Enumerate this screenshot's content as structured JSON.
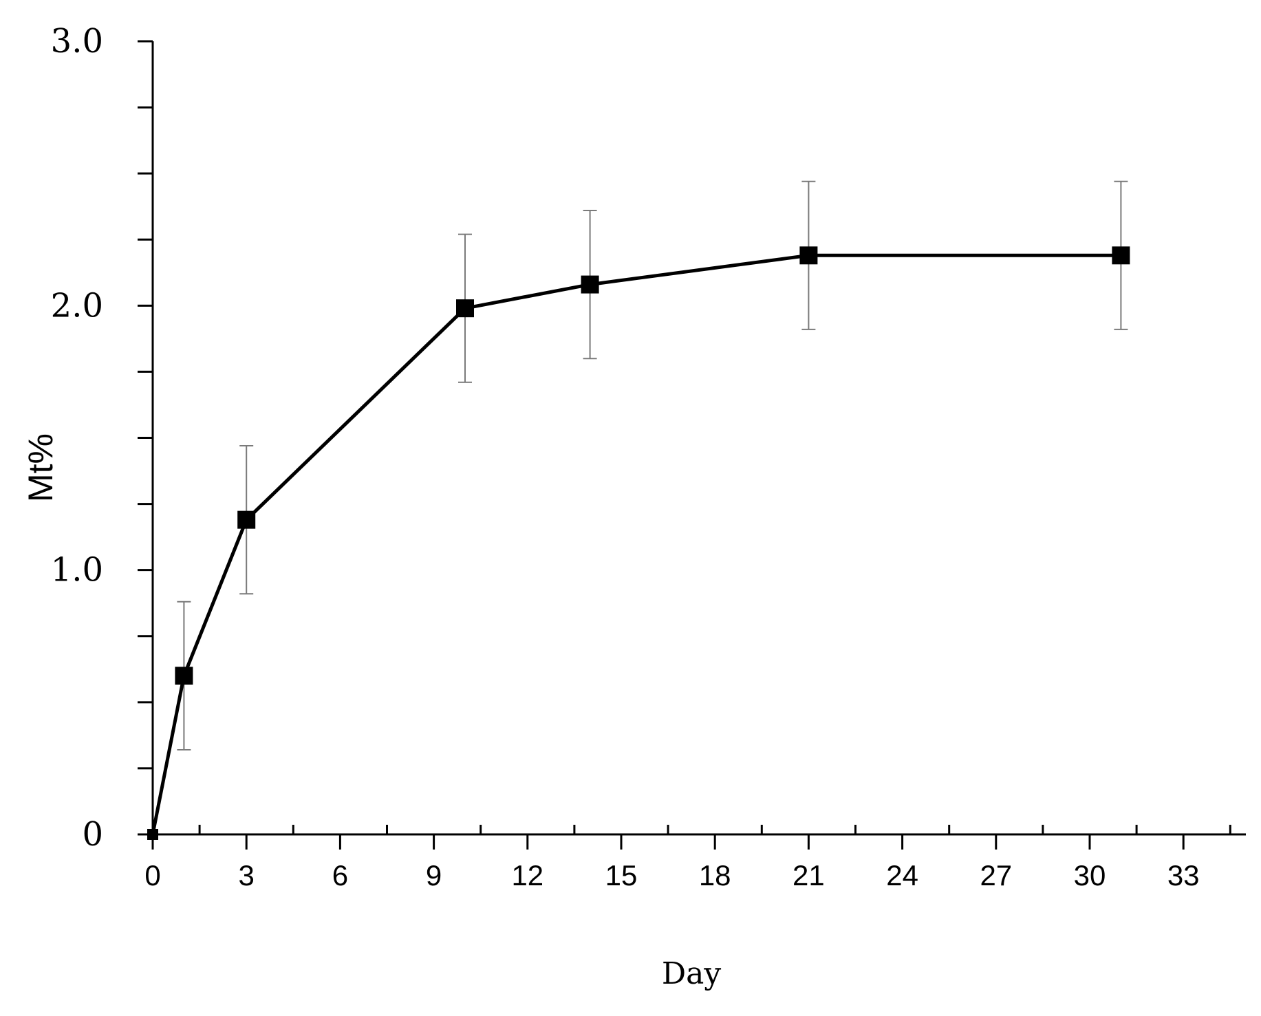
{
  "chart_data": {
    "type": "line",
    "title": "",
    "xlabel": "Day",
    "ylabel": "Mt%",
    "xlim": [
      0,
      35
    ],
    "ylim": [
      0,
      3.0
    ],
    "x_ticks": [
      0,
      3,
      6,
      9,
      12,
      15,
      18,
      21,
      24,
      27,
      30,
      33
    ],
    "x_tick_labels": [
      "0",
      "3",
      "6",
      "9",
      "12",
      "15",
      "18",
      "21",
      "24",
      "27",
      "30",
      "33"
    ],
    "y_ticks": [
      0,
      1.0,
      2.0,
      3.0
    ],
    "y_tick_labels": [
      "0",
      "1.0",
      "2.0",
      "3.0"
    ],
    "y_minor_step": 0.25,
    "x_minor_step": 1.5,
    "grid": false,
    "legend": "none",
    "series": [
      {
        "marker": "square",
        "color": "#000000",
        "x": [
          0,
          1,
          3,
          10,
          14,
          21,
          31
        ],
        "y": [
          0,
          0.6,
          1.19,
          1.99,
          2.08,
          2.19,
          2.19
        ],
        "error": [
          0,
          0.28,
          0.28,
          0.28,
          0.28,
          0.28,
          0.28
        ]
      }
    ],
    "errorbar_color": "#7a7a7a"
  }
}
